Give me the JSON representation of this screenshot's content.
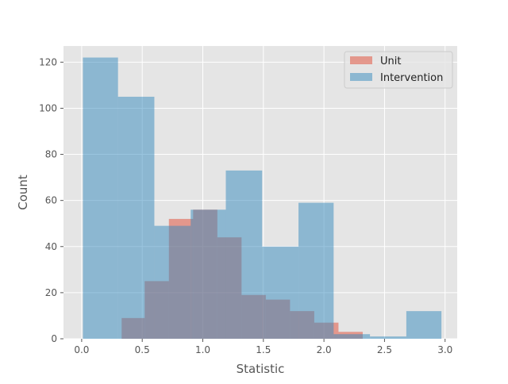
{
  "chart_data": {
    "type": "bar",
    "title": "",
    "xlabel": "Statistic",
    "ylabel": "Count",
    "xlim": [
      -0.15,
      3.1
    ],
    "ylim": [
      0,
      127
    ],
    "xticks": [
      0.0,
      0.5,
      1.0,
      1.5,
      2.0,
      2.5,
      3.0
    ],
    "xtick_labels": [
      "0.0",
      "0.5",
      "1.0",
      "1.5",
      "2.0",
      "2.5",
      "3.0"
    ],
    "yticks": [
      0,
      20,
      40,
      60,
      80,
      100,
      120
    ],
    "ytick_labels": [
      "0",
      "20",
      "40",
      "60",
      "80",
      "100",
      "120"
    ],
    "grid": true,
    "legend_position": "upper right",
    "series": [
      {
        "name": "Unit",
        "color": "#E24A33",
        "bins": [
          {
            "x0": 0.33,
            "x1": 0.52,
            "count": 9
          },
          {
            "x0": 0.52,
            "x1": 0.72,
            "count": 25
          },
          {
            "x0": 0.72,
            "x1": 0.92,
            "count": 52
          },
          {
            "x0": 0.92,
            "x1": 1.12,
            "count": 56
          },
          {
            "x0": 1.12,
            "x1": 1.32,
            "count": 44
          },
          {
            "x0": 1.32,
            "x1": 1.52,
            "count": 19
          },
          {
            "x0": 1.52,
            "x1": 1.72,
            "count": 17
          },
          {
            "x0": 1.72,
            "x1": 1.92,
            "count": 12
          },
          {
            "x0": 1.92,
            "x1": 2.12,
            "count": 7
          },
          {
            "x0": 2.12,
            "x1": 2.32,
            "count": 3
          }
        ]
      },
      {
        "name": "Intervention",
        "color": "#348ABD",
        "bins": [
          {
            "x0": 0.01,
            "x1": 0.3,
            "count": 122
          },
          {
            "x0": 0.3,
            "x1": 0.6,
            "count": 105
          },
          {
            "x0": 0.6,
            "x1": 0.9,
            "count": 49
          },
          {
            "x0": 0.9,
            "x1": 1.19,
            "count": 56
          },
          {
            "x0": 1.19,
            "x1": 1.49,
            "count": 73
          },
          {
            "x0": 1.49,
            "x1": 1.79,
            "count": 40
          },
          {
            "x0": 1.79,
            "x1": 2.08,
            "count": 59
          },
          {
            "x0": 2.08,
            "x1": 2.38,
            "count": 2
          },
          {
            "x0": 2.38,
            "x1": 2.68,
            "count": 1
          },
          {
            "x0": 2.68,
            "x1": 2.97,
            "count": 12
          }
        ]
      }
    ]
  }
}
